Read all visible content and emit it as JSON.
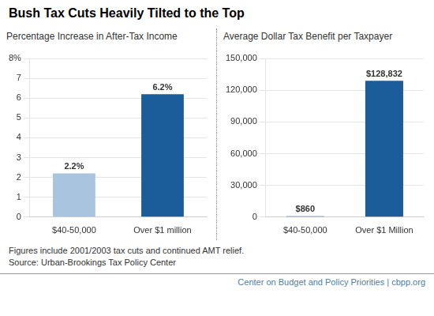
{
  "title": "Bush Tax Cuts Heavily Tilted to the Top",
  "chart_data": [
    {
      "type": "bar",
      "subtitle": "Percentage Increase in After-Tax Income",
      "categories": [
        "$40-50,000",
        "Over $1 million"
      ],
      "values": [
        2.2,
        6.2
      ],
      "value_labels": [
        "2.2%",
        "6.2%"
      ],
      "data_labels": true,
      "colors": [
        "#a8c4de",
        "#1b5c9b"
      ],
      "ylim": [
        0,
        8
      ],
      "yticks": [
        0,
        1,
        2,
        3,
        4,
        5,
        6,
        7,
        {
          "value": 8,
          "label": "8%"
        }
      ],
      "grid": true
    },
    {
      "type": "bar",
      "subtitle": "Average Dollar Tax Benefit per Taxpayer",
      "categories": [
        "$40-50,000",
        "Over $1 Million"
      ],
      "values": [
        860,
        128832
      ],
      "value_labels": [
        "$860",
        "$128,832"
      ],
      "data_labels": true,
      "colors": [
        "#1b5c9b",
        "#1b5c9b"
      ],
      "ylim": [
        0,
        150000
      ],
      "yticks": [
        0,
        {
          "value": 30000,
          "label": "30,000"
        },
        {
          "value": 60000,
          "label": "60,000"
        },
        {
          "value": 90000,
          "label": "90,000"
        },
        {
          "value": 120000,
          "label": "120,000"
        },
        {
          "value": 150000,
          "label": "150,000"
        }
      ],
      "grid": true
    }
  ],
  "annotations": [
    "Figures include 2001/2003 tax cuts and continued AMT relief.",
    "Source: Urban-Brookings Tax Policy Center",
    "Center on Budget and Policy Priorities | cbpp.org"
  ]
}
